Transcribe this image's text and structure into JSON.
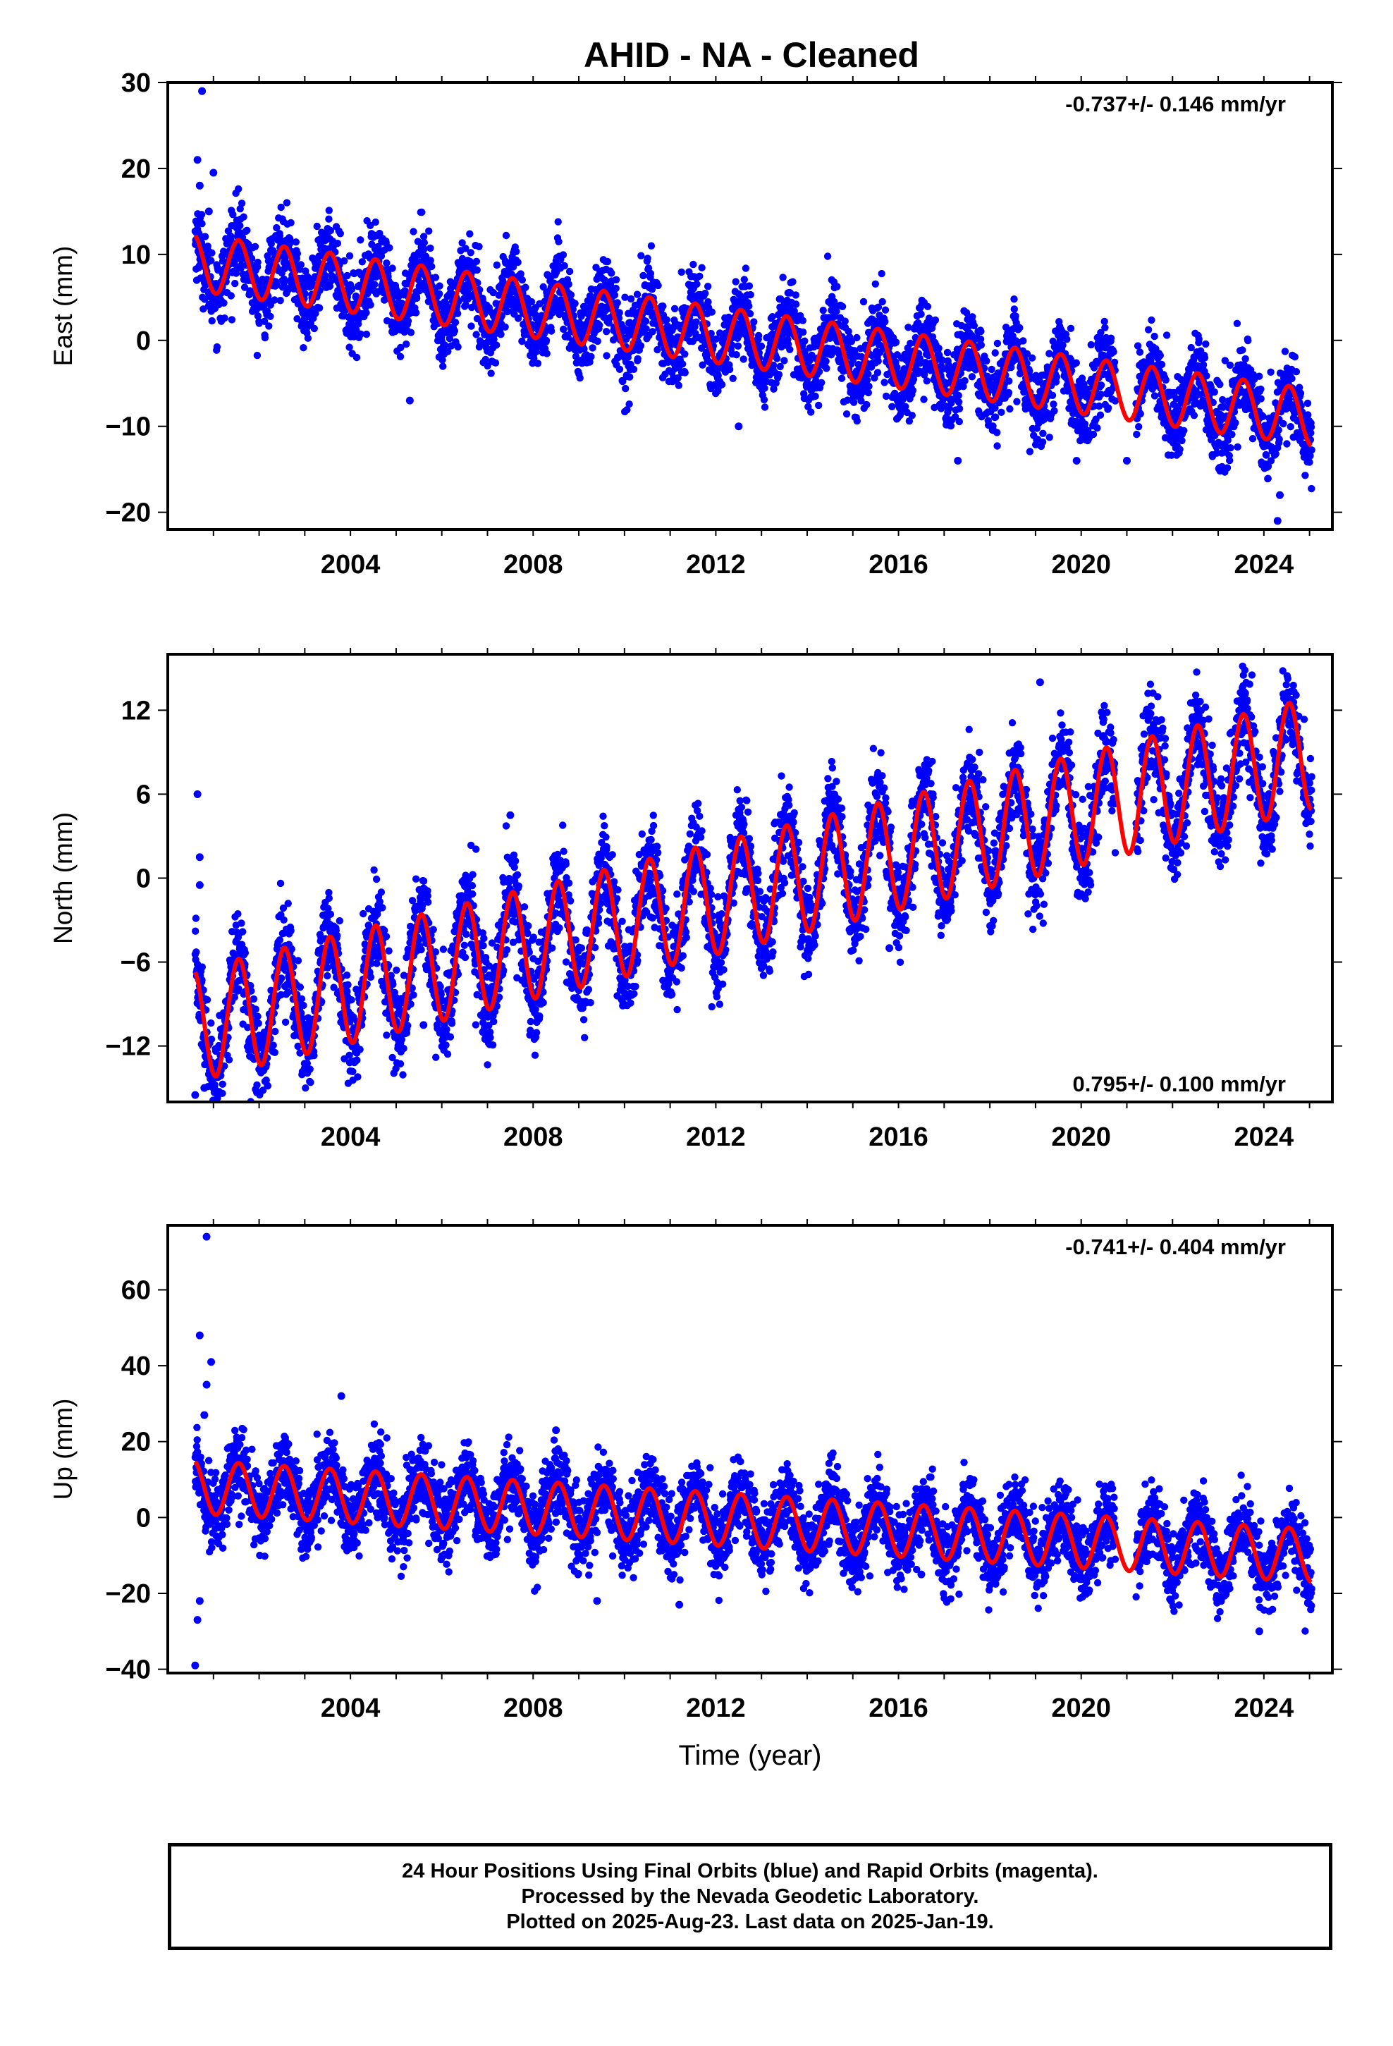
{
  "title": "AHID  - NA - Cleaned",
  "colors": {
    "points": "#0000ff",
    "fit": "#ff0000",
    "axes": "#000000"
  },
  "chart_data": [
    {
      "type": "scatter",
      "panel": "east",
      "ylabel": "East (mm)",
      "xlabel": "",
      "rate_label": "-0.737+/- 0.146 mm/yr",
      "rate_position": "top-right",
      "xlim": [
        2000.0,
        2025.5
      ],
      "ylim": [
        -22,
        30
      ],
      "xticks": [
        2004,
        2008,
        2012,
        2016,
        2020,
        2024
      ],
      "yticks": [
        30,
        20,
        10,
        0,
        -10,
        -20
      ],
      "ytick_labels": [
        "30",
        "20",
        "10",
        "0",
        "−10",
        "−20"
      ],
      "data_start": 2000.6,
      "data_end": 2025.05,
      "trend": {
        "intercept_at_2000": 9.5,
        "rate": -0.737
      },
      "annual_amplitude": 3.3,
      "scatter": 2.3,
      "outliers": [
        [
          2000.75,
          29
        ],
        [
          2000.65,
          21
        ],
        [
          2000.7,
          18
        ],
        [
          2000.9,
          15
        ],
        [
          2001.0,
          19.5
        ],
        [
          2024.3,
          -21
        ],
        [
          2024.35,
          -18
        ],
        [
          2017.3,
          -14
        ],
        [
          2012.5,
          -10
        ],
        [
          2005.3,
          -7
        ],
        [
          2021.0,
          -14
        ],
        [
          2019.9,
          -14
        ]
      ]
    },
    {
      "type": "scatter",
      "panel": "north",
      "ylabel": "North (mm)",
      "xlabel": "",
      "rate_label": "0.795+/- 0.100 mm/yr",
      "rate_position": "bottom-right",
      "xlim": [
        2000.0,
        2025.5
      ],
      "ylim": [
        -16,
        16
      ],
      "xticks": [
        2004,
        2008,
        2012,
        2016,
        2020,
        2024
      ],
      "yticks": [
        12,
        6,
        0,
        -6,
        -12
      ],
      "ytick_labels": [
        "12",
        "6",
        "0",
        "−6",
        "−12"
      ],
      "data_start": 2000.6,
      "data_end": 2025.05,
      "trend": {
        "intercept_at_2000": -11.0,
        "rate": 0.795
      },
      "annual_amplitude": 4.0,
      "scatter": 1.7,
      "outliers": [
        [
          2000.65,
          6
        ],
        [
          2000.7,
          1.5
        ],
        [
          2000.7,
          -0.5
        ],
        [
          2000.6,
          -15.5
        ],
        [
          2000.8,
          -15
        ],
        [
          2001.0,
          -15
        ],
        [
          2006.9,
          -11
        ],
        [
          2006.95,
          -11.5
        ],
        [
          2005.6,
          -10.5
        ],
        [
          2015.8,
          -5
        ],
        [
          2007.5,
          4.5
        ],
        [
          2019.1,
          14
        ]
      ]
    },
    {
      "type": "scatter",
      "panel": "up",
      "ylabel": "Up (mm)",
      "xlabel": "Time (year)",
      "rate_label": "-0.741+/- 0.404 mm/yr",
      "rate_position": "top-right",
      "xlim": [
        2000.0,
        2025.5
      ],
      "ylim": [
        -41,
        77
      ],
      "xticks": [
        2004,
        2008,
        2012,
        2016,
        2020,
        2024
      ],
      "yticks": [
        60,
        40,
        20,
        0,
        -20,
        -40
      ],
      "ytick_labels": [
        "60",
        "40",
        "20",
        "0",
        "−20",
        "−40"
      ],
      "data_start": 2000.6,
      "data_end": 2025.05,
      "trend": {
        "intercept_at_2000": 8.5,
        "rate": -0.741
      },
      "annual_amplitude": 7.0,
      "scatter": 5.0,
      "outliers": [
        [
          2000.85,
          74
        ],
        [
          2000.7,
          48
        ],
        [
          2000.95,
          41
        ],
        [
          2000.85,
          35
        ],
        [
          2000.8,
          27
        ],
        [
          2000.6,
          -39
        ],
        [
          2000.65,
          -27
        ],
        [
          2000.7,
          -22
        ],
        [
          2003.8,
          32
        ],
        [
          2008.5,
          23
        ],
        [
          2009.4,
          -22
        ],
        [
          2011.2,
          -23
        ],
        [
          2023.9,
          -30
        ],
        [
          2016.5,
          -15
        ]
      ]
    }
  ],
  "footer": {
    "line1": "24 Hour Positions Using Final Orbits (blue) and Rapid Orbits (magenta).",
    "line2": "Processed by the Nevada Geodetic Laboratory.",
    "line3": "Plotted on 2025-Aug-23. Last data on 2025-Jan-19."
  }
}
